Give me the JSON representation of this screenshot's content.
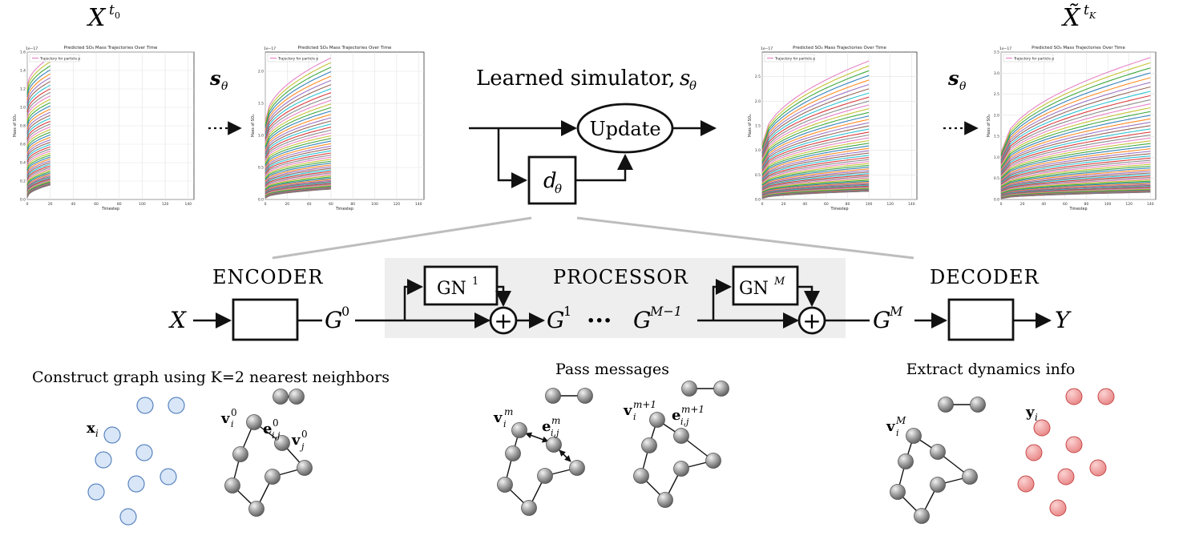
{
  "top_labels": {
    "left_state": "X",
    "left_state_sup": "t",
    "left_state_sup_sub": "0",
    "right_state": "X̃",
    "right_state_sup": "t",
    "right_state_sup_sub": "K",
    "step_label": "s",
    "step_label_sub": "θ",
    "simulator_title": "Learned simulator, ",
    "simulator_symbol": "s",
    "simulator_symbol_sub": "θ",
    "update": "Update",
    "d_theta": "d",
    "d_theta_sub": "θ"
  },
  "pipeline": {
    "encoder": "ENCODER",
    "processor": "PROCESSOR",
    "decoder": "DECODER",
    "gn1": "GN",
    "gn1_sup": "1",
    "gnM": "GN",
    "gnM_sup": "M",
    "input": "X",
    "output": "Y",
    "g0": "G",
    "g0_sup": "0",
    "g1": "G",
    "g1_sup": "1",
    "gm1": "G",
    "gm1_sup": "M−1",
    "gM": "G",
    "gM_sup": "M",
    "dots": "···",
    "plus": "+"
  },
  "bottom": {
    "construct_title": "Construct graph using K=2 nearest neighbors",
    "pass_title": "Pass messages",
    "extract_title": "Extract dynamics info",
    "x_i": "x",
    "x_i_sub": "i",
    "v_i0": "v",
    "v_i0_sub": "i",
    "v_i0_sup": "0",
    "e_ij0": "e",
    "e_ij0_sub": "i,j",
    "e_ij0_sup": "0",
    "v_j0": "v",
    "v_j0_sub": "j",
    "v_j0_sup": "0",
    "v_im": "v",
    "v_im_sub": "i",
    "v_im_sup": "m",
    "e_ijm": "e",
    "e_ijm_sub": "i,j",
    "e_ijm_sup": "m",
    "v_im1": "v",
    "v_im1_sub": "i",
    "v_im1_sup": "m+1",
    "e_ijm1": "e",
    "e_ijm1_sub": "i,j",
    "e_ijm1_sup": "m+1",
    "v_iM": "v",
    "v_iM_sub": "i",
    "v_iM_sup": "M",
    "y_i": "y",
    "y_i_sub": "i"
  },
  "chart_data": [
    {
      "type": "line",
      "title": "Predicted SO₄ Mass Trajectories Over Time",
      "xlabel": "Timestep",
      "ylabel": "Mass of SO₄",
      "scale_note": "1e−17",
      "legend": "Trajectory for particle p",
      "legend_position": "top-left",
      "grid": true,
      "xlim": [
        0,
        145
      ],
      "ylim": [
        0,
        1.6
      ],
      "xticks": [
        0,
        20,
        40,
        60,
        80,
        100,
        120,
        140
      ],
      "yticks": [
        0.0,
        0.2,
        0.4,
        0.6,
        0.8,
        1.0,
        1.2,
        1.4,
        1.6
      ],
      "last_timestep": 20,
      "series_end_max": 1.55,
      "series_start_max": 1.2,
      "series_count": 60
    },
    {
      "type": "line",
      "title": "Predicted SO₄ Mass Trajectories Over Time",
      "xlabel": "Timestep",
      "ylabel": "Mass of SO₄",
      "scale_note": "1e−17",
      "legend": "Trajectory for particle p",
      "legend_position": "top-left",
      "grid": true,
      "xlim": [
        0,
        145
      ],
      "ylim": [
        0,
        2.3
      ],
      "xticks": [
        0,
        20,
        40,
        60,
        80,
        100,
        120,
        140
      ],
      "yticks": [
        0.0,
        0.5,
        1.0,
        1.5,
        2.0
      ],
      "last_timestep": 60,
      "series_end_max": 2.25,
      "series_start_max": 1.2,
      "series_count": 60
    },
    {
      "type": "line",
      "title": "Predicted SO₄ Mass Trajectories Over Time",
      "xlabel": "Timestep",
      "ylabel": "Mass of SO₄",
      "scale_note": "1e−17",
      "legend": "Trajectory for particle p",
      "legend_position": "top-left",
      "grid": true,
      "xlim": [
        0,
        145
      ],
      "ylim": [
        0,
        3.0
      ],
      "xticks": [
        0,
        20,
        40,
        60,
        80,
        100,
        120,
        140
      ],
      "yticks": [
        0.0,
        0.5,
        1.0,
        1.5,
        2.0,
        2.5
      ],
      "last_timestep": 100,
      "series_end_max": 2.85,
      "series_start_max": 1.1,
      "series_count": 60
    },
    {
      "type": "line",
      "title": "Predicted SO₄ Mass Trajectories Over Time",
      "xlabel": "Timestep",
      "ylabel": "Mass of SO₄",
      "scale_note": "1e−17",
      "legend": "Trajectory for particle p",
      "legend_position": "top-left",
      "grid": true,
      "xlim": [
        0,
        145
      ],
      "ylim": [
        0,
        3.5
      ],
      "xticks": [
        0,
        20,
        40,
        60,
        80,
        100,
        120,
        140
      ],
      "yticks": [
        0.0,
        0.5,
        1.0,
        1.5,
        2.0,
        2.5,
        3.0,
        3.5
      ],
      "last_timestep": 140,
      "series_end_max": 3.35,
      "series_start_max": 1.1,
      "series_count": 60
    }
  ],
  "colors": {
    "node_gray": "#9a9a9a",
    "node_blue": "#d8e6f7",
    "node_blue_stroke": "#5b85c0",
    "node_red": "#f1a0a0",
    "node_red_stroke": "#c64a4a",
    "processor_bg": "#eeeeee",
    "connector": "#bdbdbd",
    "series": [
      "#e377c2",
      "#bcbd22",
      "#2ca02c",
      "#1f77b4",
      "#ff7f0e",
      "#9467bd",
      "#8c564b",
      "#17becf",
      "#d62728",
      "#7f7f7f"
    ]
  }
}
